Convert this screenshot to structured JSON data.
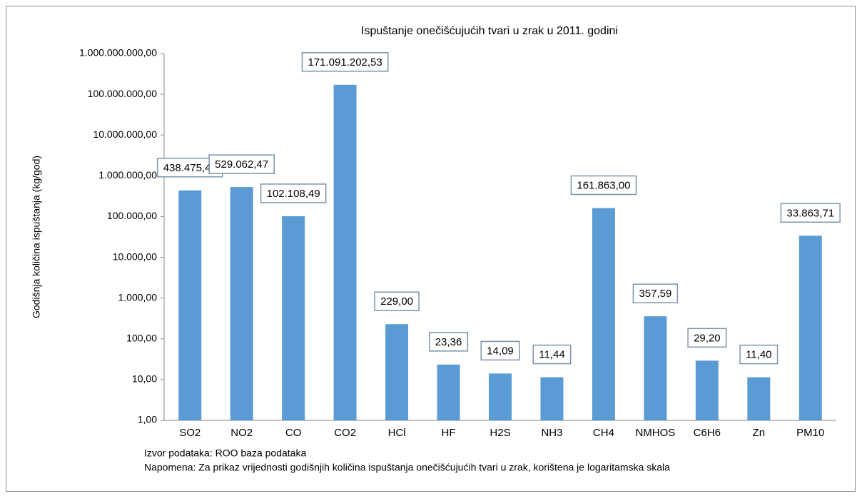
{
  "chart_data": {
    "type": "bar",
    "title": "Ispuštanje onečišćujućih tvari u zrak u 2011. godini",
    "y_label": "Godišnja količina ispuštanja (kg/god)",
    "categories": [
      "SO2",
      "NO2",
      "CO",
      "CO2",
      "HCl",
      "HF",
      "H2S",
      "NH3",
      "CH4",
      "NMHOS",
      "C6H6",
      "Zn",
      "PM10"
    ],
    "values": [
      438475.49,
      529062.47,
      102108.49,
      171091202.53,
      229,
      23.36,
      14.09,
      11.44,
      161863,
      357.59,
      29.2,
      11.4,
      33863.71
    ],
    "value_labels": [
      "438.475,49",
      "529.062,47",
      "102.108,49",
      "171.091.202,53",
      "229,00",
      "23,36",
      "14,09",
      "11,44",
      "161.863,00",
      "357,59",
      "29,20",
      "11,40",
      "33.863,71"
    ],
    "color": "#5b9bd5",
    "log_scale": true,
    "ylim": [
      1,
      1000000000
    ],
    "yticks": [
      {
        "value": 1,
        "label": "1,00"
      },
      {
        "value": 10,
        "label": "10,00"
      },
      {
        "value": 100,
        "label": "100,00"
      },
      {
        "value": 1000,
        "label": "1.000,00"
      },
      {
        "value": 10000,
        "label": "10.000,00"
      },
      {
        "value": 100000,
        "label": "100.000,00"
      },
      {
        "value": 1000000,
        "label": "1.000.000,00"
      },
      {
        "value": 10000000,
        "label": "10.000.000,00"
      },
      {
        "value": 100000000,
        "label": "100.000.000,00"
      },
      {
        "value": 1000000000,
        "label": "1.000.000.000,00"
      }
    ],
    "grid": false,
    "notes": [
      "Izvor podataka: ROO baza podataka",
      "Napomena: Za prikaz vrijednosti godišnjih količina ispuštanja onečišćujućih tvari u zrak, korištena je logaritamska skala"
    ]
  }
}
